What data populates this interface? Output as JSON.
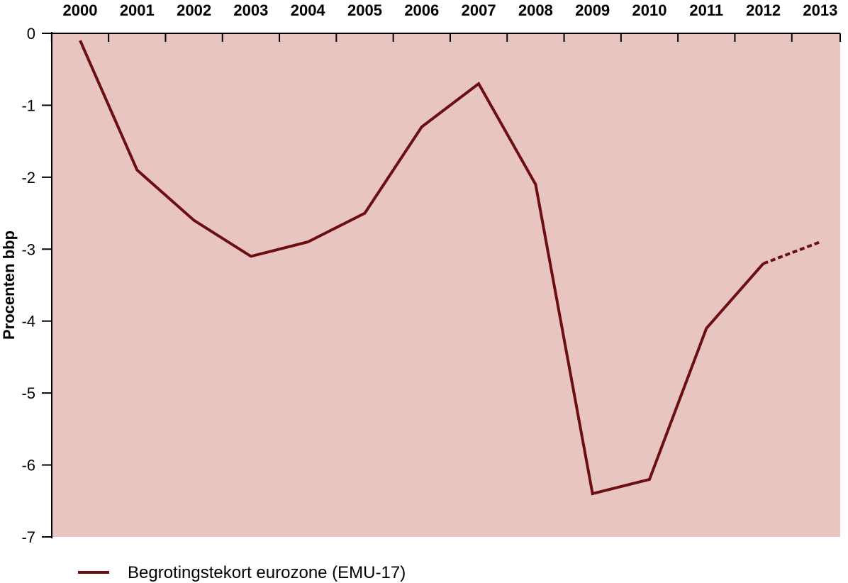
{
  "chart_data": {
    "type": "line",
    "ylabel": "Procenten bbp",
    "xlabel": "",
    "x": [
      2000,
      2001,
      2002,
      2003,
      2004,
      2005,
      2006,
      2007,
      2008,
      2009,
      2010,
      2011,
      2012,
      2013
    ],
    "x_ticks": [
      "2000",
      "2001",
      "2002",
      "2003",
      "2004",
      "2005",
      "2006",
      "2007",
      "2008",
      "2009",
      "2010",
      "2011",
      "2012",
      "2013"
    ],
    "x_axis_position": "top",
    "ylim": [
      -7,
      0
    ],
    "y_ticks": [
      "0",
      "-1",
      "-2",
      "-3",
      "-4",
      "-5",
      "-6",
      "-7"
    ],
    "grid": false,
    "legend_position": "bottom-left",
    "series": [
      {
        "name": "Begrotingstekort eurozone (EMU-17)",
        "color": "#6b0f12",
        "values": [
          -0.1,
          -1.9,
          -2.6,
          -3.1,
          -2.9,
          -2.5,
          -1.3,
          -0.7,
          -2.1,
          -6.4,
          -6.2,
          -4.1,
          -3.2,
          -2.9
        ],
        "solid_until": 2012,
        "dashed_from": 2012
      }
    ],
    "plot_background": "#e8c5c1"
  }
}
